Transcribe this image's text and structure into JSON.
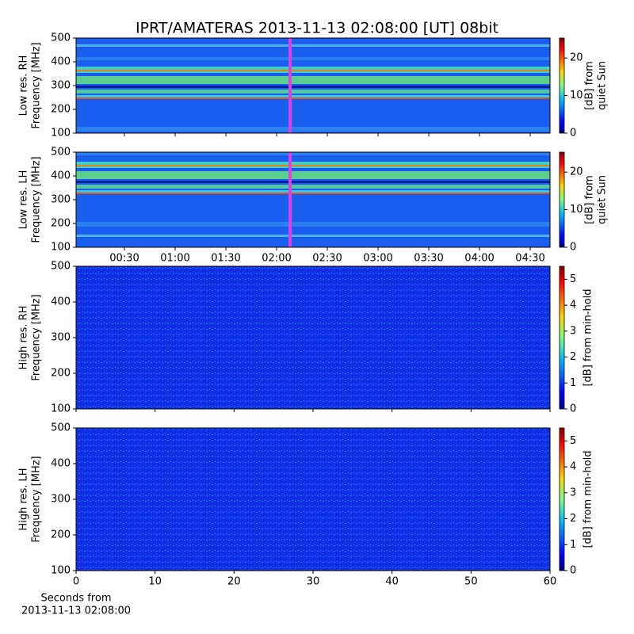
{
  "chart_data": [
    {
      "type": "heatmap",
      "title": "IPRT/AMATERAS 2013-11-13 02:08:00 [UT]   08bit",
      "ylabel": [
        "Low res. RH",
        "Frequency [MHz]"
      ],
      "xlim": [
        1.4,
        281.7
      ],
      "xticks": [
        30,
        60,
        90,
        120,
        150,
        180,
        210,
        240,
        270
      ],
      "xticklabels": false,
      "ylim": [
        100,
        500
      ],
      "yticks": [
        100,
        200,
        300,
        400,
        500
      ],
      "vline": {
        "x": 128,
        "color": "#e040e0"
      },
      "colorbar": {
        "label": [
          "[dB] from",
          "quiet Sun"
        ],
        "clim": [
          0,
          25.3
        ],
        "cticks": [
          0,
          10,
          20
        ]
      }
    },
    {
      "type": "heatmap",
      "ylabel": [
        "Low res. LH",
        "Frequency [MHz]"
      ],
      "xlim": [
        1.4,
        281.7
      ],
      "xticks": [
        {
          "value": 30,
          "label": "00:30"
        },
        {
          "value": 60,
          "label": "01:00"
        },
        {
          "value": 90,
          "label": "01:30"
        },
        {
          "value": 120,
          "label": "02:00"
        },
        {
          "value": 150,
          "label": "02:30"
        },
        {
          "value": 180,
          "label": "03:00"
        },
        {
          "value": 210,
          "label": "03:30"
        },
        {
          "value": 240,
          "label": "04:00"
        },
        {
          "value": 270,
          "label": "04:30"
        }
      ],
      "xticklabels": true,
      "ylim": [
        100,
        500
      ],
      "yticks": [
        100,
        200,
        300,
        400,
        500
      ],
      "vline": {
        "x": 128,
        "color": "#e040e0"
      },
      "colorbar": {
        "label": [
          "[dB] from",
          "quiet Sun"
        ],
        "clim": [
          0,
          25.3
        ],
        "cticks": [
          0,
          10,
          20
        ]
      }
    },
    {
      "type": "heatmap",
      "ylabel": [
        "High res. RH",
        "Frequency [MHz]"
      ],
      "xlim": [
        0,
        60
      ],
      "xticks": [
        0,
        10,
        20,
        30,
        40,
        50,
        60
      ],
      "xticklabels": false,
      "ylim": [
        100,
        500
      ],
      "yticks": [
        100,
        200,
        300,
        400,
        500
      ],
      "colorbar": {
        "label": [
          "[dB] from min-hold"
        ],
        "clim": [
          0,
          5.5
        ],
        "cticks": [
          0,
          1,
          2,
          3,
          4,
          5
        ]
      }
    },
    {
      "type": "heatmap",
      "ylabel": [
        "High res. LH",
        "Frequency [MHz]"
      ],
      "xlabel": [
        "Seconds from",
        "2013-11-13 02:08:00"
      ],
      "xlim": [
        0,
        60
      ],
      "xticks": [
        0,
        10,
        20,
        30,
        40,
        50,
        60
      ],
      "xticklabels": true,
      "ylim": [
        100,
        500
      ],
      "yticks": [
        100,
        200,
        300,
        400,
        500
      ],
      "colorbar": {
        "label": [
          "[dB] from min-hold"
        ],
        "clim": [
          0,
          5.5
        ],
        "cticks": [
          0,
          1,
          2,
          3,
          4,
          5
        ]
      }
    }
  ]
}
